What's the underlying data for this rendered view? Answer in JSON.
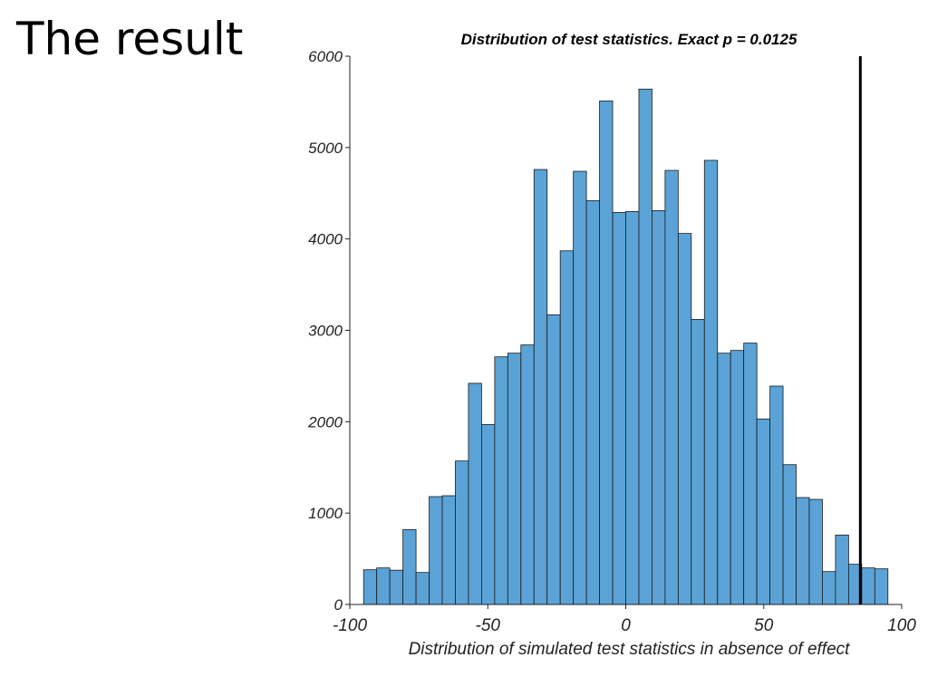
{
  "slide": {
    "title": "The result"
  },
  "chart_data": {
    "type": "bar",
    "title": "Distribution of test statistics. Exact p = 0.0125",
    "xlabel": "Distribution of simulated test statistics in absence of effect",
    "ylabel": "",
    "xlim": [
      -100,
      100
    ],
    "ylim": [
      0,
      6000
    ],
    "x_ticks": [
      "-100",
      "-50",
      "0",
      "50",
      "100"
    ],
    "x_tick_values": [
      -100,
      -50,
      0,
      50,
      100
    ],
    "y_ticks": [
      "0",
      "1000",
      "2000",
      "3000",
      "4000",
      "5000",
      "6000"
    ],
    "y_tick_values": [
      0,
      1000,
      2000,
      3000,
      4000,
      5000,
      6000
    ],
    "bin_start": -95,
    "bin_width": 4.75,
    "counts": [
      380,
      400,
      375,
      820,
      350,
      1180,
      1190,
      1570,
      2420,
      1970,
      2710,
      2750,
      2840,
      4760,
      3170,
      3870,
      4740,
      4420,
      5510,
      4290,
      4300,
      5640,
      4310,
      4750,
      4060,
      3120,
      4860,
      2750,
      2780,
      2860,
      2030,
      2390,
      1530,
      1170,
      1150,
      360,
      760,
      440,
      400,
      390
    ],
    "observed_statistic": 85,
    "bar_color": "#5ba3d6",
    "bar_edge_color": "#1a1a1a",
    "line_color": "#000000",
    "grid": false
  }
}
